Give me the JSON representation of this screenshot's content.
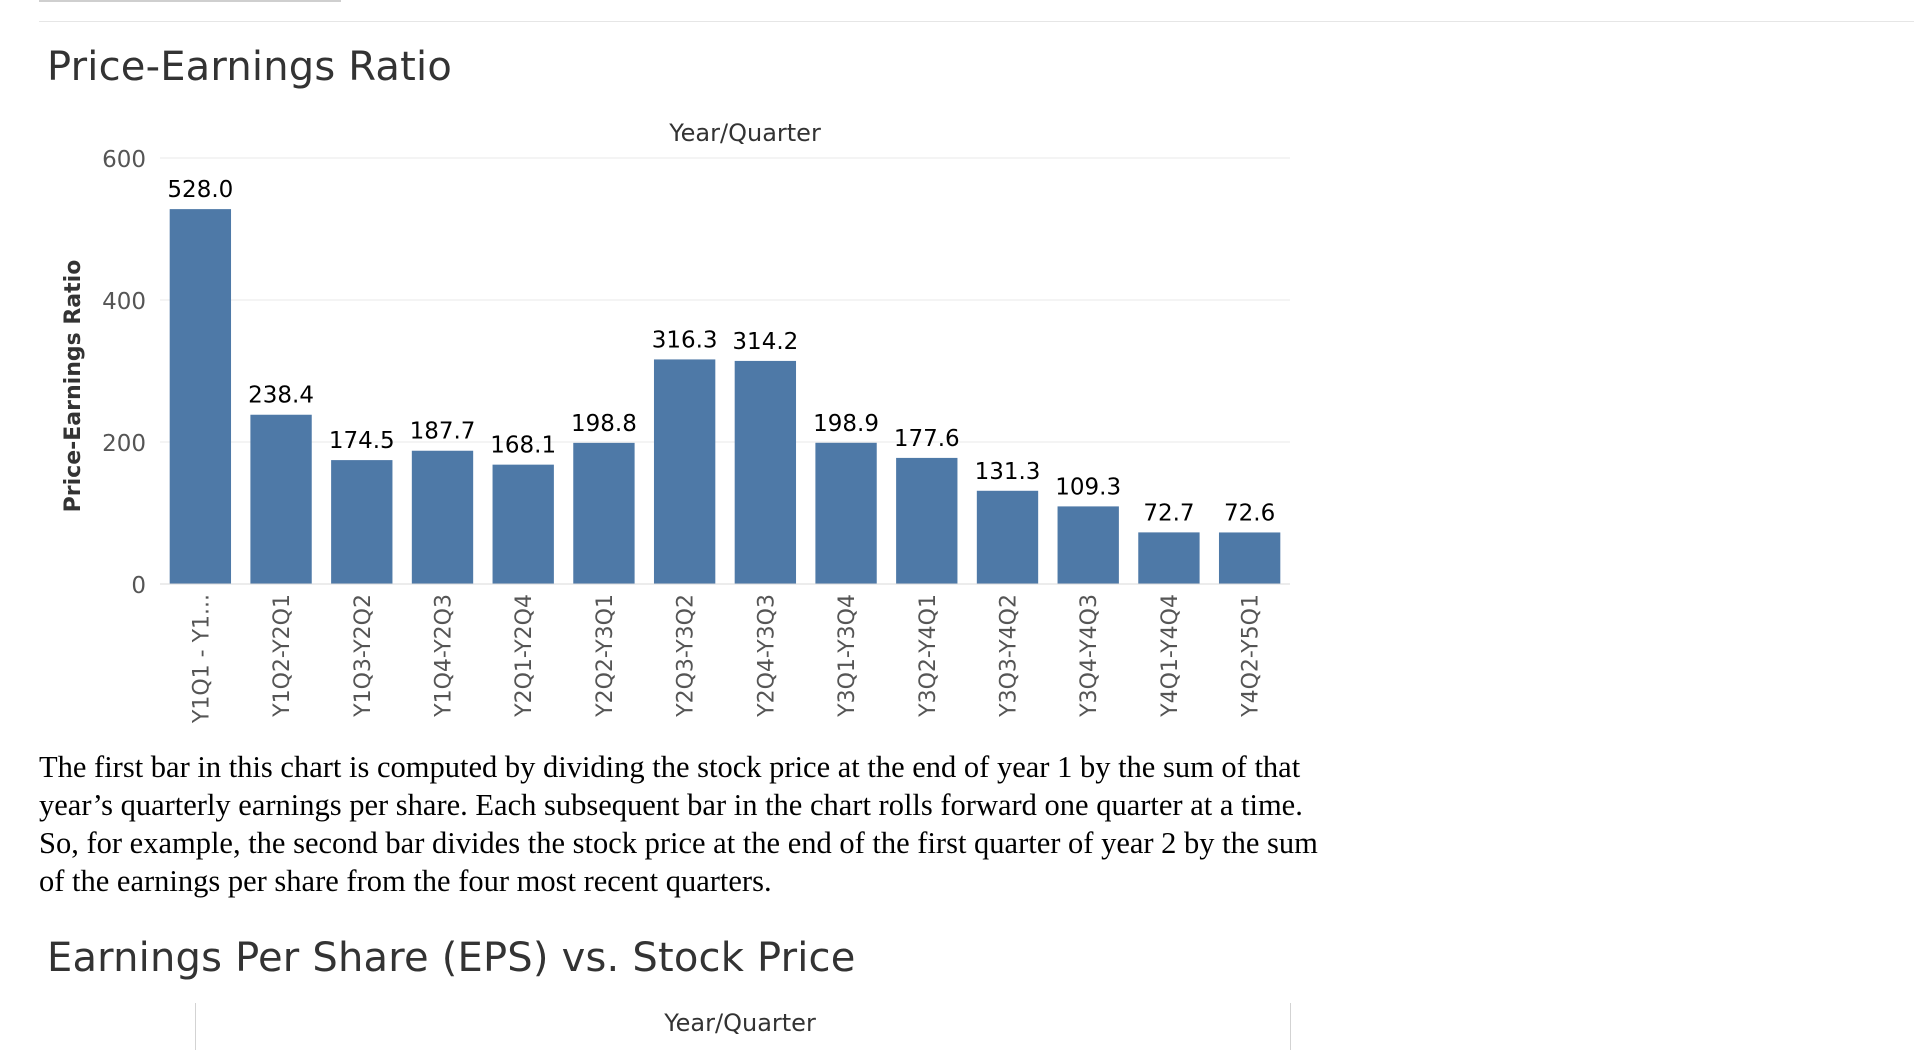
{
  "page": {
    "sections": {
      "pe_title": "Price-Earnings Ratio",
      "eps_title": "Earnings Per Share (EPS) vs. Stock Price",
      "eps_x_axis_title": "Year/Quarter"
    },
    "description": "The first bar in this chart is computed by dividing the stock price at the end of year 1 by the sum of that year’s quarterly earnings per share. Each subsequent bar in the chart rolls forward one quarter at a time. So, for example, the second bar divides the stock price at the end of the first quarter of year 2 by the sum of the earnings per share from the four most recent quarters."
  },
  "colors": {
    "bar": "#4e79a7",
    "gridline": "#e9e9e9",
    "axis_text": "#555555",
    "label_text": "#000000"
  },
  "chart_data": {
    "type": "bar",
    "title": "Price-Earnings Ratio",
    "xlabel": "Year/Quarter",
    "ylabel": "Price-Earnings Ratio",
    "x_axis_title_position": "top",
    "ylim": [
      0,
      600
    ],
    "yticks": [
      0,
      200,
      400,
      600
    ],
    "grid": true,
    "categories": [
      "Y1Q1 - Y1...",
      "Y1Q2-Y2Q1",
      "Y1Q3-Y2Q2",
      "Y1Q4-Y2Q3",
      "Y2Q1-Y2Q4",
      "Y2Q2-Y3Q1",
      "Y2Q3-Y3Q2",
      "Y2Q4-Y3Q3",
      "Y3Q1-Y3Q4",
      "Y3Q2-Y4Q1",
      "Y3Q3-Y4Q2",
      "Y3Q4-Y4Q3",
      "Y4Q1-Y4Q4",
      "Y4Q2-Y5Q1"
    ],
    "values": [
      528.0,
      238.4,
      174.5,
      187.7,
      168.1,
      198.8,
      316.3,
      314.2,
      198.9,
      177.6,
      131.3,
      109.3,
      72.7,
      72.6
    ],
    "data_labels": [
      "528.0",
      "238.4",
      "174.5",
      "187.7",
      "168.1",
      "198.8",
      "316.3",
      "314.2",
      "198.9",
      "177.6",
      "131.3",
      "109.3",
      "72.7",
      "72.6"
    ]
  }
}
